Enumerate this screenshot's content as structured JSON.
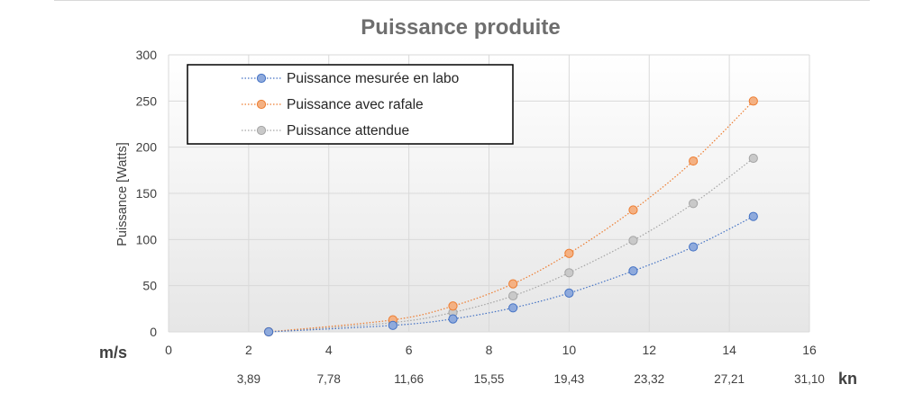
{
  "chart_data": {
    "type": "scatter",
    "title": "Puissance produite",
    "ylabel": "Puissance [Watts]",
    "x_unit_label": "m/s",
    "x2_unit_label": "kn",
    "xlim": [
      0,
      16
    ],
    "ylim": [
      0,
      300
    ],
    "x_ticks": [
      "0",
      "2",
      "4",
      "6",
      "8",
      "10",
      "12",
      "14",
      "16"
    ],
    "y_ticks": [
      "0",
      "50",
      "100",
      "150",
      "200",
      "250",
      "300"
    ],
    "x2_ticks": [
      {
        "label": "3,89",
        "at": 2
      },
      {
        "label": "7,78",
        "at": 4
      },
      {
        "label": "11,66",
        "at": 6
      },
      {
        "label": "15,55",
        "at": 8
      },
      {
        "label": "19,43",
        "at": 10
      },
      {
        "label": "23,32",
        "at": 12
      },
      {
        "label": "27,21",
        "at": 14
      },
      {
        "label": "31,10",
        "at": 16
      }
    ],
    "grid": true,
    "legend_position": "top-left",
    "series": [
      {
        "name": "Puissance mesurée en labo",
        "color": "#4472c4",
        "fill": "#8faadc",
        "points": [
          [
            2.5,
            0
          ],
          [
            5.6,
            7
          ],
          [
            7.1,
            14
          ],
          [
            8.6,
            26
          ],
          [
            10.0,
            42
          ],
          [
            11.6,
            66
          ],
          [
            13.1,
            92
          ],
          [
            14.6,
            125
          ]
        ]
      },
      {
        "name": "Puissance avec rafale",
        "color": "#ed7d31",
        "fill": "#f4b183",
        "points": [
          [
            2.5,
            0
          ],
          [
            5.6,
            13
          ],
          [
            7.1,
            28
          ],
          [
            8.6,
            52
          ],
          [
            10.0,
            85
          ],
          [
            11.6,
            132
          ],
          [
            13.1,
            185
          ],
          [
            14.6,
            250
          ]
        ]
      },
      {
        "name": "Puissance attendue",
        "color": "#a5a5a5",
        "fill": "#c9c9c9",
        "points": [
          [
            2.5,
            0
          ],
          [
            5.6,
            10
          ],
          [
            7.1,
            21
          ],
          [
            8.6,
            39
          ],
          [
            10.0,
            64
          ],
          [
            11.6,
            99
          ],
          [
            13.1,
            139
          ],
          [
            14.6,
            188
          ]
        ]
      }
    ]
  }
}
